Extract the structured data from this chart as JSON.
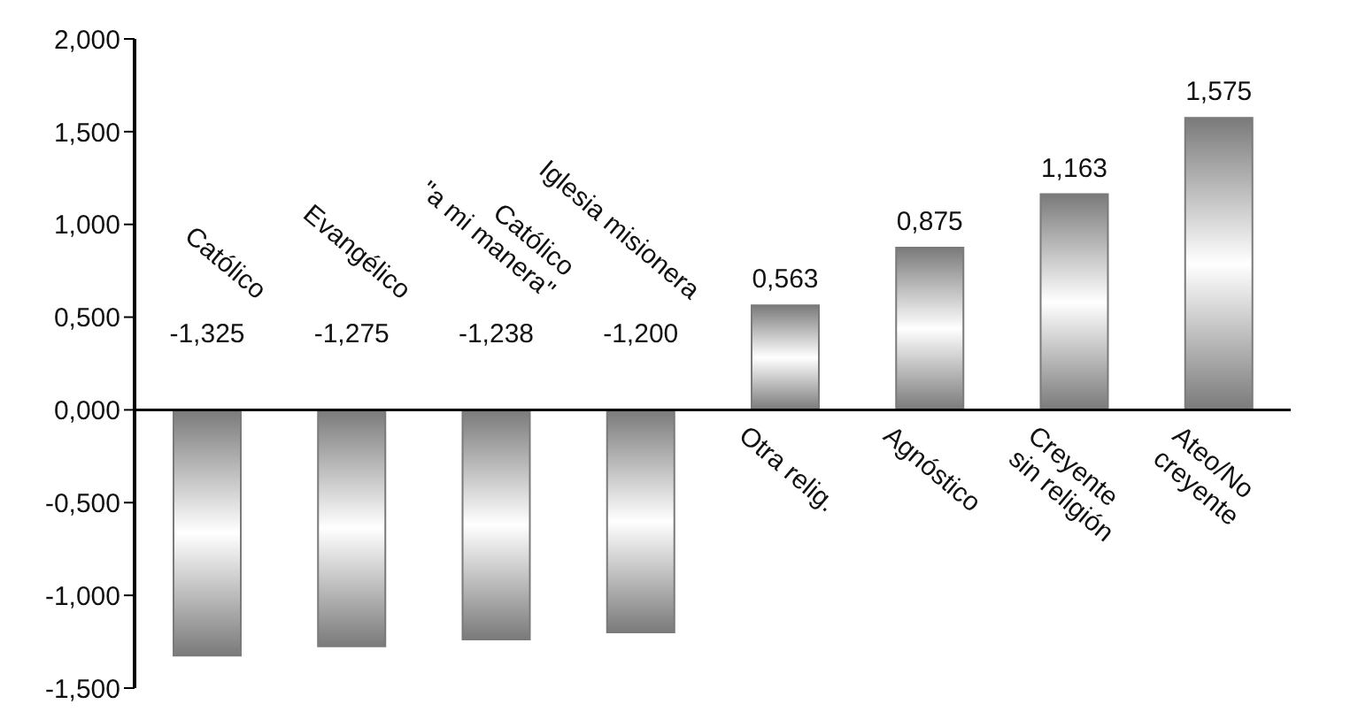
{
  "chart_data": {
    "type": "bar",
    "categories": [
      "Católico",
      "Evangélico",
      "Católico\n\"a mi manera\"",
      "Iglesia misionera",
      "Otra relig.",
      "Agnóstico",
      "Creyente\nsin religión",
      "Ateo/No\ncreyente"
    ],
    "values": [
      -1.325,
      -1.275,
      -1.238,
      -1.2,
      0.563,
      0.875,
      1.163,
      1.575
    ],
    "value_labels": [
      "-1,325",
      "-1,275",
      "-1,238",
      "-1,200",
      "0,563",
      "0,875",
      "1,163",
      "1,575"
    ],
    "color": "#7a7a7a",
    "ylim": [
      -1.5,
      2
    ],
    "yticks": [
      {
        "value": -1.5,
        "label": "-1,500"
      },
      {
        "value": -1,
        "label": "-1,000"
      },
      {
        "value": -0.5,
        "label": "-0,500"
      },
      {
        "value": 0,
        "label": "0,000"
      },
      {
        "value": 0.5,
        "label": "0,500"
      },
      {
        "value": 1,
        "label": "1,000"
      },
      {
        "value": 1.5,
        "label": "1,500"
      },
      {
        "value": 2,
        "label": "2,000"
      }
    ],
    "grid": false
  }
}
